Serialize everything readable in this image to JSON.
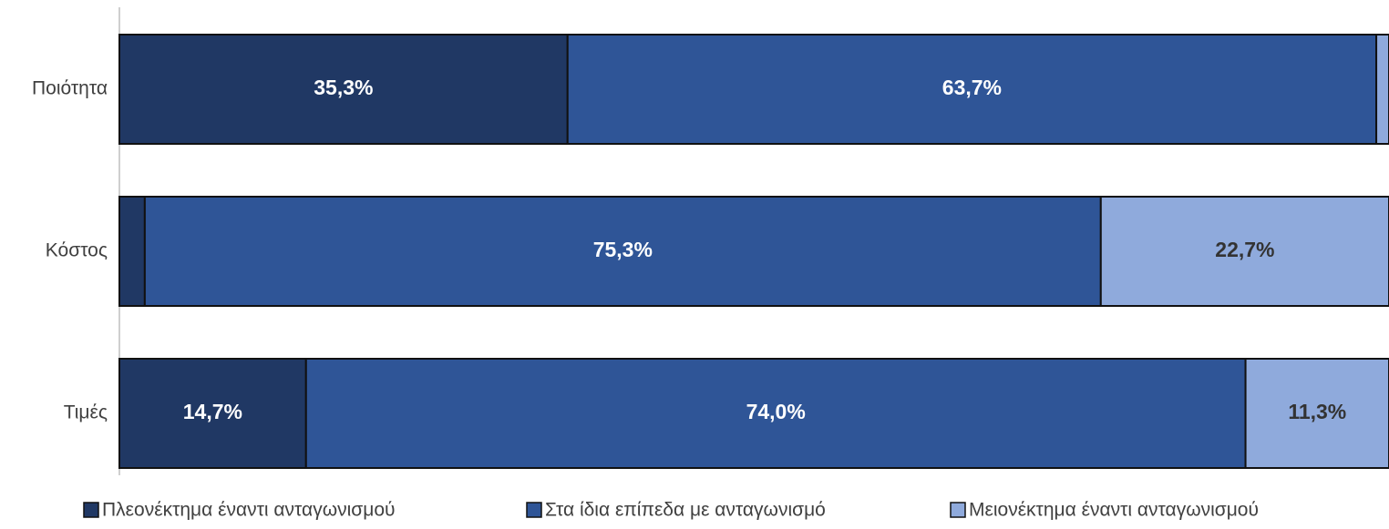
{
  "chart_data": {
    "type": "stacked-barh",
    "categories": [
      "Ποιότητα",
      "Κόστος",
      "Τιμές"
    ],
    "series": [
      {
        "name": "Πλεονέκτημα έναντι ανταγωνισμού",
        "color": "#203864",
        "values": [
          35.3,
          2.0,
          14.7
        ],
        "value_labels": [
          "35,3%",
          null,
          "14,7%"
        ],
        "label_color": "#ffffff"
      },
      {
        "name": "Στα ίδια  επίπεδα με ανταγωνισμό",
        "color": "#2f5597",
        "values": [
          63.7,
          75.3,
          74.0
        ],
        "value_labels": [
          "63,7%",
          "75,3%",
          "74,0%"
        ],
        "label_color": "#ffffff"
      },
      {
        "name": "Μειονέκτημα έναντι ανταγωνισμού",
        "color": "#8faadc",
        "values": [
          1.0,
          22.7,
          11.3
        ],
        "value_labels": [
          null,
          "22,7%",
          "11,3%"
        ],
        "label_color": "#333333"
      }
    ],
    "xlim": [
      0,
      100
    ],
    "legend": "bottom"
  }
}
